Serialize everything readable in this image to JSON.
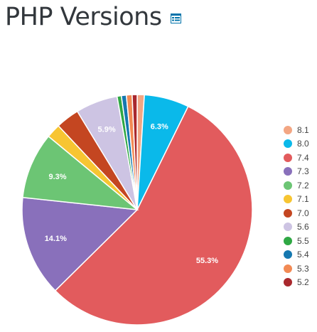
{
  "page_title": "PHP Versions",
  "toolbar": {
    "table_view_icon": "table-icon"
  },
  "chart_data": {
    "type": "pie",
    "title": "PHP Versions",
    "legend_position": "right",
    "slices": [
      {
        "label": "8.1",
        "value": 1.0,
        "color": "#f3a683",
        "data_label": ""
      },
      {
        "label": "8.0",
        "value": 6.3,
        "color": "#0ab9ea",
        "data_label": "6.3%"
      },
      {
        "label": "7.4",
        "value": 55.3,
        "color": "#e25b5d",
        "data_label": "55.3%"
      },
      {
        "label": "7.3",
        "value": 14.1,
        "color": "#8970bb",
        "data_label": "14.1%"
      },
      {
        "label": "7.2",
        "value": 9.3,
        "color": "#6cc574",
        "data_label": "9.3%"
      },
      {
        "label": "7.1",
        "value": 2.0,
        "color": "#f7c532",
        "data_label": ""
      },
      {
        "label": "7.0",
        "value": 3.3,
        "color": "#c44621",
        "data_label": ""
      },
      {
        "label": "5.6",
        "value": 5.9,
        "color": "#cdc4e3",
        "data_label": "5.9%"
      },
      {
        "label": "5.5",
        "value": 0.6,
        "color": "#2fa844",
        "data_label": ""
      },
      {
        "label": "5.4",
        "value": 0.7,
        "color": "#1578b0",
        "data_label": ""
      },
      {
        "label": "5.3",
        "value": 0.8,
        "color": "#f28a54",
        "data_label": ""
      },
      {
        "label": "5.2",
        "value": 0.7,
        "color": "#a9282d",
        "data_label": ""
      }
    ]
  }
}
